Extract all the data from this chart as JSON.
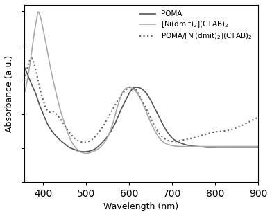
{
  "title": "",
  "xlabel": "Wavelength (nm)",
  "ylabel": "Absorbance (a.u.)",
  "xlim": [
    355,
    900
  ],
  "legend": [
    "POMA",
    "[Ni(dmit)$_2$](CTAB)$_2$",
    "POMA/[Ni(dmit)$_2$](CTAB)$_2$"
  ],
  "line_colors": [
    "#555555",
    "#aaaaaa",
    "#666666"
  ],
  "background_color": "#ffffff",
  "poma_x": [
    355,
    365,
    375,
    385,
    390,
    395,
    400,
    410,
    420,
    430,
    440,
    450,
    460,
    470,
    480,
    490,
    500,
    510,
    520,
    530,
    540,
    550,
    560,
    570,
    580,
    590,
    600,
    610,
    620,
    630,
    640,
    650,
    660,
    670,
    680,
    690,
    700,
    720,
    740,
    760,
    780,
    800,
    820,
    850,
    900
  ],
  "poma_y": [
    0.68,
    0.62,
    0.56,
    0.5,
    0.46,
    0.43,
    0.4,
    0.34,
    0.3,
    0.27,
    0.245,
    0.225,
    0.205,
    0.195,
    0.185,
    0.18,
    0.18,
    0.185,
    0.195,
    0.215,
    0.24,
    0.27,
    0.31,
    0.36,
    0.42,
    0.47,
    0.52,
    0.55,
    0.555,
    0.545,
    0.52,
    0.48,
    0.43,
    0.38,
    0.33,
    0.29,
    0.26,
    0.23,
    0.215,
    0.21,
    0.205,
    0.205,
    0.205,
    0.205,
    0.205
  ],
  "ni_x": [
    355,
    360,
    365,
    370,
    375,
    380,
    385,
    387,
    390,
    393,
    395,
    400,
    405,
    410,
    420,
    430,
    440,
    450,
    460,
    470,
    480,
    490,
    500,
    510,
    520,
    530,
    540,
    550,
    555,
    560,
    565,
    570,
    575,
    580,
    590,
    600,
    610,
    620,
    630,
    640,
    650,
    660,
    670,
    680,
    700,
    720,
    740,
    760,
    780,
    800,
    850,
    900
  ],
  "ni_y": [
    0.52,
    0.56,
    0.63,
    0.71,
    0.8,
    0.89,
    0.96,
    0.99,
    0.99,
    0.97,
    0.95,
    0.89,
    0.83,
    0.76,
    0.63,
    0.52,
    0.42,
    0.34,
    0.27,
    0.22,
    0.19,
    0.175,
    0.17,
    0.175,
    0.185,
    0.2,
    0.225,
    0.265,
    0.295,
    0.33,
    0.37,
    0.42,
    0.46,
    0.5,
    0.545,
    0.555,
    0.545,
    0.515,
    0.47,
    0.41,
    0.35,
    0.3,
    0.26,
    0.235,
    0.215,
    0.21,
    0.21,
    0.21,
    0.21,
    0.21,
    0.21,
    0.21
  ],
  "blend_x": [
    355,
    360,
    365,
    370,
    375,
    380,
    385,
    390,
    395,
    400,
    405,
    410,
    415,
    420,
    425,
    430,
    435,
    440,
    450,
    460,
    470,
    480,
    490,
    500,
    510,
    520,
    530,
    540,
    550,
    560,
    570,
    580,
    590,
    600,
    605,
    610,
    615,
    620,
    630,
    640,
    650,
    660,
    670,
    680,
    690,
    700,
    710,
    720,
    730,
    740,
    750,
    760,
    770,
    780,
    790,
    800,
    820,
    840,
    860,
    880,
    900
  ],
  "blend_y": [
    0.6,
    0.64,
    0.69,
    0.72,
    0.72,
    0.68,
    0.63,
    0.57,
    0.52,
    0.48,
    0.44,
    0.42,
    0.41,
    0.415,
    0.41,
    0.4,
    0.385,
    0.37,
    0.33,
    0.295,
    0.265,
    0.245,
    0.235,
    0.235,
    0.245,
    0.265,
    0.295,
    0.33,
    0.375,
    0.42,
    0.465,
    0.505,
    0.535,
    0.555,
    0.56,
    0.555,
    0.545,
    0.525,
    0.48,
    0.43,
    0.375,
    0.325,
    0.285,
    0.26,
    0.245,
    0.24,
    0.24,
    0.245,
    0.25,
    0.255,
    0.26,
    0.268,
    0.275,
    0.282,
    0.29,
    0.295,
    0.3,
    0.31,
    0.33,
    0.355,
    0.38
  ]
}
